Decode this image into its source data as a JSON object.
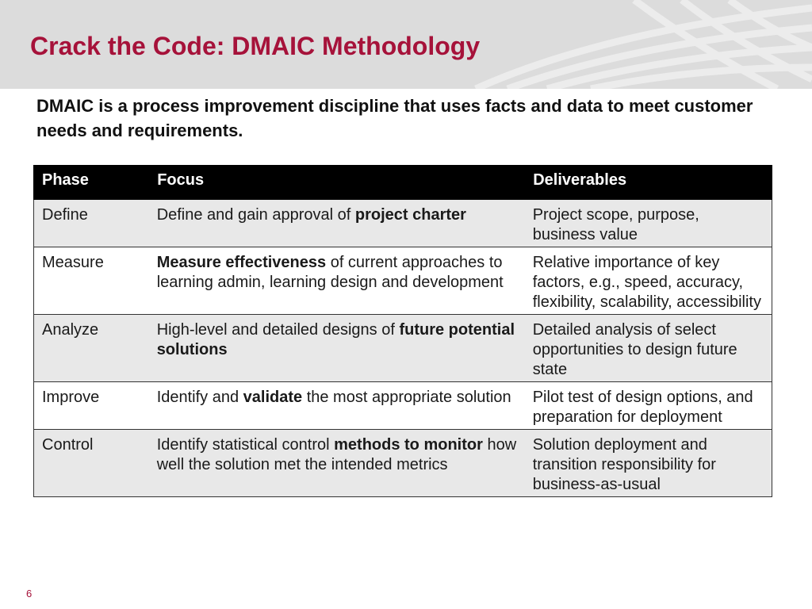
{
  "slide": {
    "title": "Crack the Code: DMAIC Methodology",
    "intro": "DMAIC is a process improvement discipline that uses facts and data to meet customer needs and requirements.",
    "page_number": "6",
    "colors": {
      "title": "#a6123a",
      "header_band": "#dcdcdc",
      "table_header": "#000000",
      "row_shade": "#e8e8e8"
    }
  },
  "table": {
    "headers": {
      "phase": "Phase",
      "focus": "Focus",
      "deliverables": "Deliverables"
    },
    "rows": [
      {
        "phase": "Define",
        "focus": {
          "before": "Define and gain approval of ",
          "bold": "project charter",
          "after": ""
        },
        "deliverables": "Project scope, purpose, business value"
      },
      {
        "phase": "Measure",
        "focus": {
          "before": "",
          "bold": "Measure effectiveness",
          "after": " of current approaches to learning admin, learning design and development"
        },
        "deliverables": "Relative importance of key factors, e.g., speed, accuracy, flexibility, scalability, accessibility"
      },
      {
        "phase": "Analyze",
        "focus": {
          "before": "High-level and detailed designs of ",
          "bold": "future potential solutions",
          "after": ""
        },
        "deliverables": "Detailed analysis of select opportunities to design future state"
      },
      {
        "phase": "Improve",
        "focus": {
          "before": "Identify and ",
          "bold": "validate",
          "after": " the most appropriate solution"
        },
        "deliverables": "Pilot test of design options, and preparation for deployment"
      },
      {
        "phase": "Control",
        "focus": {
          "before": "Identify statistical control ",
          "bold": "methods to monitor",
          "after": " how well the solution met the intended metrics"
        },
        "deliverables": "Solution deployment and transition responsibility for business-as-usual"
      }
    ]
  }
}
